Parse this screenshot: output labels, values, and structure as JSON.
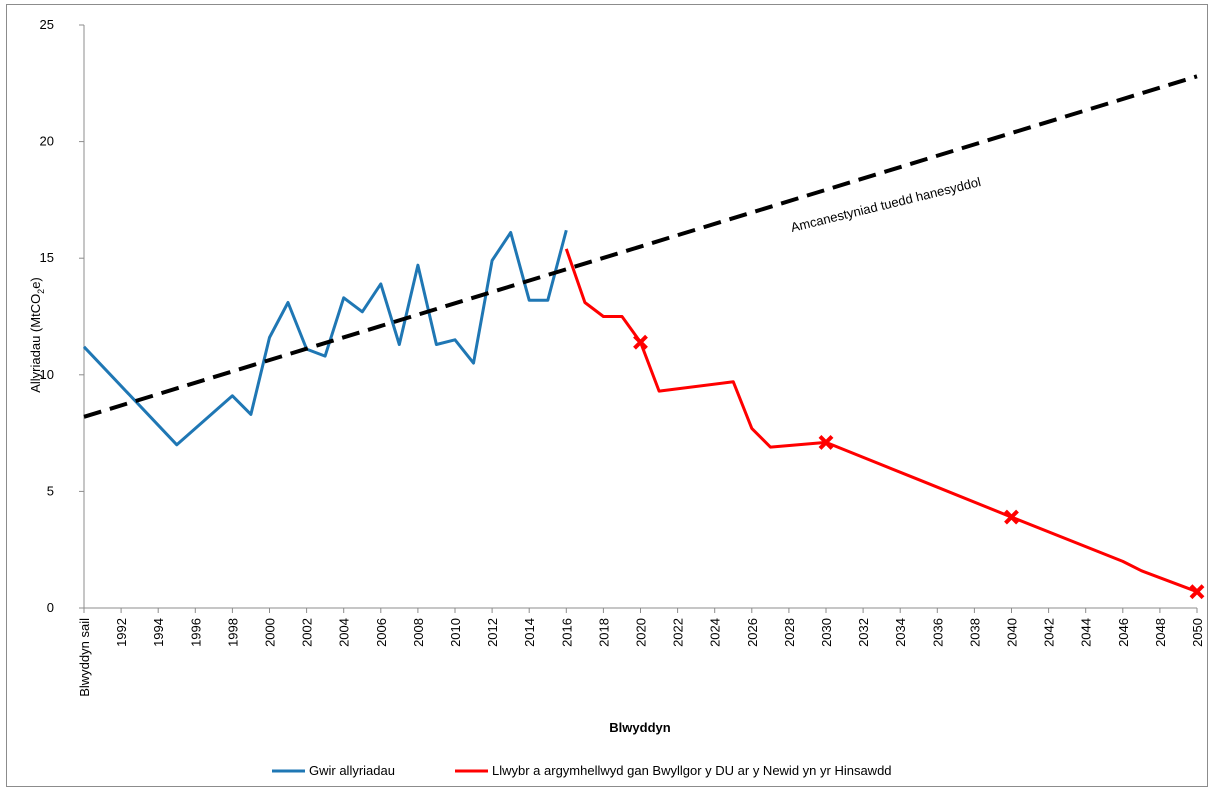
{
  "chart_data": {
    "type": "line",
    "xlabel": "Blwyddyn",
    "ylabel": "Allyriadau (MtCO₂e)",
    "ylabel_parts": {
      "before": "Allyriadau (MtCO",
      "sub": "2",
      "after": "e)"
    },
    "ylim": [
      0,
      25
    ],
    "yticks": [
      0,
      5,
      10,
      15,
      20,
      25
    ],
    "xlim": [
      1990,
      2050
    ],
    "x_tick_labels": [
      {
        "x": 1990,
        "label": "Blwyddyn sail"
      },
      {
        "x": 1992,
        "label": "1992"
      },
      {
        "x": 1994,
        "label": "1994"
      },
      {
        "x": 1996,
        "label": "1996"
      },
      {
        "x": 1998,
        "label": "1998"
      },
      {
        "x": 2000,
        "label": "2000"
      },
      {
        "x": 2002,
        "label": "2002"
      },
      {
        "x": 2004,
        "label": "2004"
      },
      {
        "x": 2006,
        "label": "2006"
      },
      {
        "x": 2008,
        "label": "2008"
      },
      {
        "x": 2010,
        "label": "2010"
      },
      {
        "x": 2012,
        "label": "2012"
      },
      {
        "x": 2014,
        "label": "2014"
      },
      {
        "x": 2016,
        "label": "2016"
      },
      {
        "x": 2018,
        "label": "2018"
      },
      {
        "x": 2020,
        "label": "2020"
      },
      {
        "x": 2022,
        "label": "2022"
      },
      {
        "x": 2024,
        "label": "2024"
      },
      {
        "x": 2026,
        "label": "2026"
      },
      {
        "x": 2028,
        "label": "2028"
      },
      {
        "x": 2030,
        "label": "2030"
      },
      {
        "x": 2032,
        "label": "2032"
      },
      {
        "x": 2034,
        "label": "2034"
      },
      {
        "x": 2036,
        "label": "2036"
      },
      {
        "x": 2038,
        "label": "2038"
      },
      {
        "x": 2040,
        "label": "2040"
      },
      {
        "x": 2042,
        "label": "2042"
      },
      {
        "x": 2044,
        "label": "2044"
      },
      {
        "x": 2046,
        "label": "2046"
      },
      {
        "x": 2048,
        "label": "2048"
      },
      {
        "x": 2050,
        "label": "2050"
      }
    ],
    "series": [
      {
        "name": "Gwir allyriadau",
        "color": "#1f77b4",
        "x": [
          1990,
          1995,
          1998,
          1999,
          2000,
          2001,
          2002,
          2003,
          2004,
          2005,
          2006,
          2007,
          2008,
          2009,
          2010,
          2011,
          2012,
          2013,
          2014,
          2015,
          2016
        ],
        "y": [
          11.2,
          7.0,
          9.1,
          8.3,
          11.6,
          13.1,
          11.1,
          10.8,
          13.3,
          12.7,
          13.9,
          11.3,
          14.7,
          11.3,
          11.5,
          10.5,
          14.9,
          16.1,
          13.2,
          13.2,
          16.2
        ]
      },
      {
        "name": "Llwybr a argymhellwyd gan Bwyllgor y DU ar y Newid yn yr Hinsawdd",
        "color": "#ff0000",
        "x": [
          2016,
          2017,
          2018,
          2019,
          2020,
          2021,
          2025,
          2026,
          2027,
          2030,
          2035,
          2040,
          2046,
          2047,
          2050
        ],
        "y": [
          15.4,
          13.1,
          12.5,
          12.5,
          11.4,
          9.3,
          9.7,
          7.7,
          6.9,
          7.1,
          5.5,
          3.9,
          2.0,
          1.6,
          0.7
        ],
        "markers": [
          {
            "x": 2020,
            "y": 11.4
          },
          {
            "x": 2030,
            "y": 7.1
          },
          {
            "x": 2040,
            "y": 3.9
          },
          {
            "x": 2050,
            "y": 0.7
          }
        ]
      },
      {
        "name": "Amcanestyniad tuedd hanesyddol",
        "color": "#000000",
        "style": "dashed",
        "x": [
          1990,
          2050
        ],
        "y": [
          8.2,
          22.8
        ]
      }
    ],
    "annotations": [
      {
        "text": "Amcanestyniad tuedd hanesyddol"
      }
    ],
    "legend": {
      "position": "bottom",
      "entries": [
        {
          "label": "Gwir allyriadau",
          "color": "#1f77b4"
        },
        {
          "label": "Llwybr a argymhellwyd gan Bwyllgor y DU ar y Newid yn yr Hinsawdd",
          "color": "#ff0000"
        }
      ]
    },
    "grid": false
  }
}
